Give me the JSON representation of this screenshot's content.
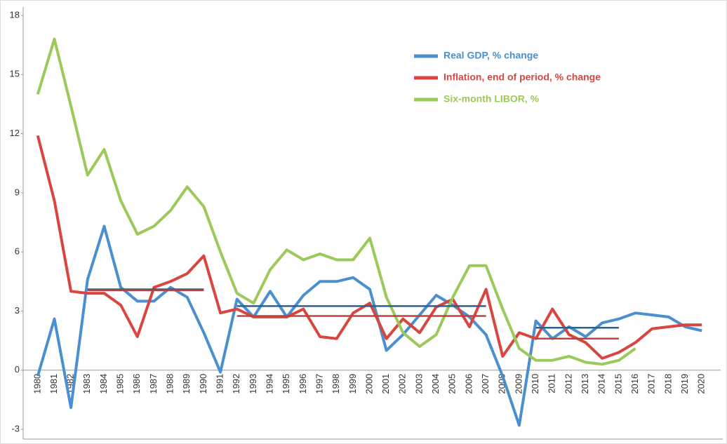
{
  "chart_data": {
    "type": "line",
    "categories": [
      1980,
      1981,
      1982,
      1983,
      1984,
      1985,
      1986,
      1987,
      1988,
      1989,
      1990,
      1991,
      1992,
      1993,
      1994,
      1995,
      1996,
      1997,
      1998,
      1999,
      2000,
      2001,
      2002,
      2003,
      2004,
      2005,
      2006,
      2007,
      2008,
      2009,
      2010,
      2011,
      2012,
      2013,
      2014,
      2015,
      2016,
      2017,
      2018,
      2019,
      2020
    ],
    "series": [
      {
        "name": "Real GDP, % change",
        "color": "#4a8fcf",
        "values": [
          -0.3,
          2.6,
          -1.9,
          4.6,
          7.3,
          4.2,
          3.5,
          3.5,
          4.2,
          3.7,
          1.9,
          -0.1,
          3.6,
          2.7,
          4.0,
          2.7,
          3.8,
          4.5,
          4.5,
          4.7,
          4.1,
          1.0,
          1.8,
          2.8,
          3.8,
          3.3,
          2.7,
          1.8,
          -0.3,
          -2.8,
          2.5,
          1.6,
          2.2,
          1.7,
          2.4,
          2.6,
          2.9,
          2.8,
          2.7,
          2.2,
          2.0
        ]
      },
      {
        "name": "Inflation, end of period, % change",
        "color": "#d9453f",
        "values": [
          11.9,
          8.6,
          4.0,
          3.9,
          3.9,
          3.3,
          1.7,
          4.2,
          4.5,
          4.9,
          5.8,
          2.9,
          3.1,
          2.7,
          2.7,
          2.7,
          3.1,
          1.7,
          1.6,
          2.9,
          3.4,
          1.6,
          2.6,
          1.9,
          3.2,
          3.6,
          2.2,
          4.1,
          0.7,
          1.9,
          1.6,
          3.1,
          1.8,
          1.4,
          0.6,
          0.9,
          1.4,
          2.1,
          2.2,
          2.3,
          2.3
        ]
      },
      {
        "name": "Six-month LIBOR, %",
        "color": "#9bc95a",
        "values": [
          14.0,
          16.8,
          13.4,
          9.9,
          11.2,
          8.6,
          6.9,
          7.3,
          8.1,
          9.3,
          8.3,
          6.0,
          3.9,
          3.4,
          5.1,
          6.1,
          5.6,
          5.9,
          5.6,
          5.6,
          6.7,
          3.7,
          1.9,
          1.2,
          1.8,
          3.7,
          5.3,
          5.3,
          3.1,
          1.1,
          0.5,
          0.5,
          0.7,
          0.4,
          0.3,
          0.5,
          1.1,
          null,
          null,
          null,
          null
        ]
      }
    ],
    "period_averages": [
      {
        "color": "#2e5f8f",
        "x": [
          1983,
          1990
        ],
        "value": 4.1
      },
      {
        "color": "#2e5f8f",
        "x": [
          1992,
          2007
        ],
        "value": 3.25
      },
      {
        "color": "#2e5f8f",
        "x": [
          2010,
          2015
        ],
        "value": 2.15
      },
      {
        "color": "#c0403a",
        "x": [
          1983,
          1990
        ],
        "value": 4.05
      },
      {
        "color": "#c0403a",
        "x": [
          1992,
          2007
        ],
        "value": 2.75
      },
      {
        "color": "#c0403a",
        "x": [
          2010,
          2015
        ],
        "value": 1.6
      }
    ],
    "ylim": [
      -3,
      18
    ],
    "yticks": [
      -3,
      0,
      3,
      6,
      9,
      12,
      15,
      18
    ],
    "grid": false
  }
}
